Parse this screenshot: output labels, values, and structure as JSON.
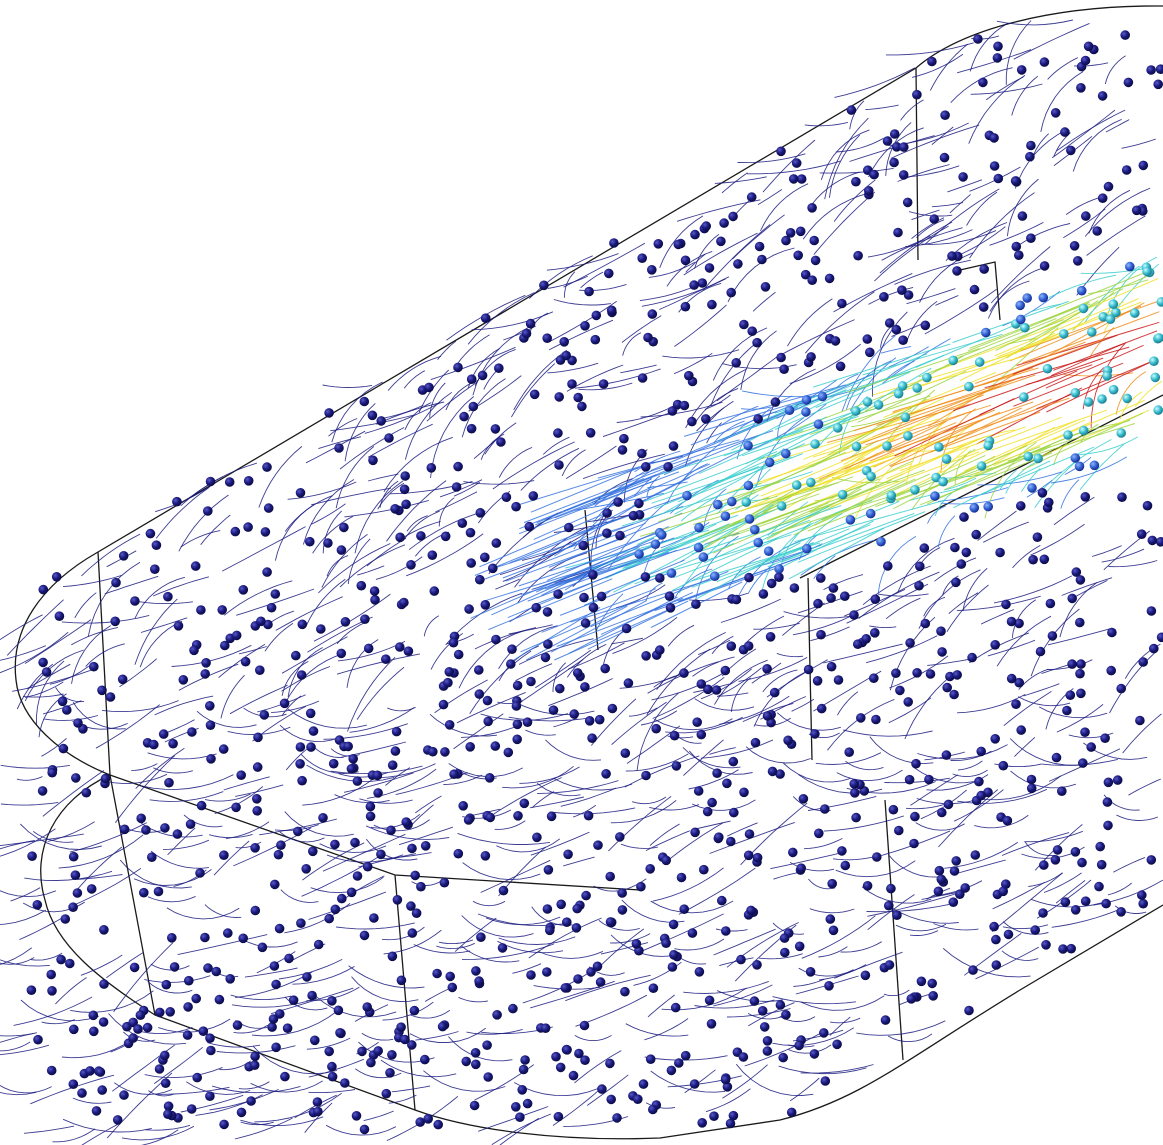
{
  "scene": {
    "description_type": "3D particle trace visualization",
    "colormap": "rainbow",
    "colors": {
      "background": "#ffffff",
      "geometry_edge": "#1a1a1a",
      "particle_low": "#1a1a80",
      "particle_mid": "#2f6fe0",
      "cyan": "#33cccc",
      "green": "#9ad33a",
      "yellow": "#f0e020",
      "orange": "#f08a10",
      "red": "#c81010"
    },
    "particle_marker": "sphere",
    "trace_style": "streamline-tail"
  }
}
